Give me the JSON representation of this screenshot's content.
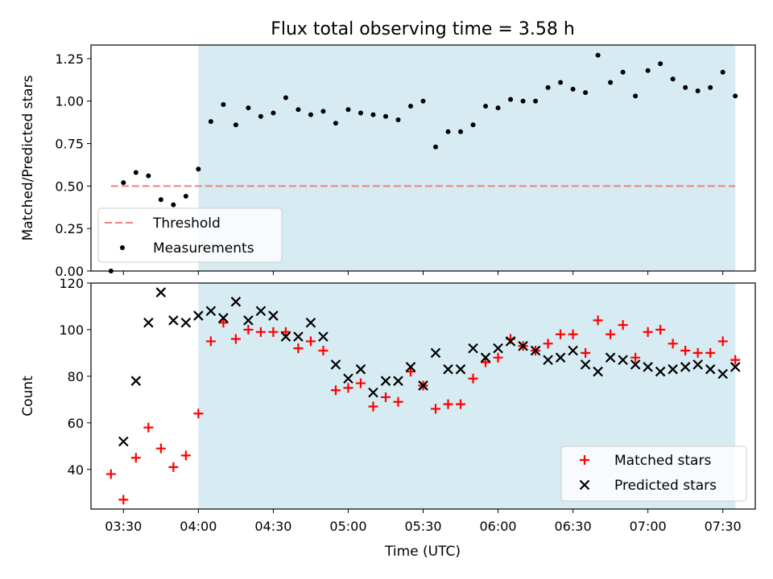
{
  "chart_data": [
    {
      "type": "scatter",
      "title": "Flux total observing time = 3.58 h",
      "xlabel": "",
      "ylabel": "Matched/Predicted stars",
      "xlim": [
        "03:17",
        "07:43"
      ],
      "ylim": [
        0,
        1.33
      ],
      "y_ticks": [
        "0.00",
        "0.25",
        "0.50",
        "0.75",
        "1.00",
        "1.25"
      ],
      "y_tick_values": [
        0,
        0.25,
        0.5,
        0.75,
        1.0,
        1.25
      ],
      "shaded_region": {
        "x_start": "04:00",
        "x_end": "07:35",
        "color": "#add8e6"
      },
      "threshold": {
        "name": "Threshold",
        "y": 0.5,
        "x_start": "03:25",
        "x_end": "07:35",
        "color": "#f08080"
      },
      "legend": {
        "position": "lower-left",
        "entries": [
          "Threshold",
          "Measurements"
        ]
      },
      "series": [
        {
          "name": "Measurements",
          "color": "#000000",
          "marker": "dot",
          "points": [
            [
              "03:25",
              0.0
            ],
            [
              "03:30",
              0.52
            ],
            [
              "03:35",
              0.58
            ],
            [
              "03:40",
              0.56
            ],
            [
              "03:45",
              0.42
            ],
            [
              "03:50",
              0.39
            ],
            [
              "03:55",
              0.44
            ],
            [
              "04:00",
              0.6
            ],
            [
              "04:05",
              0.88
            ],
            [
              "04:10",
              0.98
            ],
            [
              "04:15",
              0.86
            ],
            [
              "04:20",
              0.96
            ],
            [
              "04:25",
              0.91
            ],
            [
              "04:30",
              0.93
            ],
            [
              "04:35",
              1.02
            ],
            [
              "04:40",
              0.95
            ],
            [
              "04:45",
              0.92
            ],
            [
              "04:50",
              0.94
            ],
            [
              "04:55",
              0.87
            ],
            [
              "05:00",
              0.95
            ],
            [
              "05:05",
              0.93
            ],
            [
              "05:10",
              0.92
            ],
            [
              "05:15",
              0.91
            ],
            [
              "05:20",
              0.89
            ],
            [
              "05:25",
              0.97
            ],
            [
              "05:30",
              1.0
            ],
            [
              "05:35",
              0.73
            ],
            [
              "05:40",
              0.82
            ],
            [
              "05:45",
              0.82
            ],
            [
              "05:50",
              0.86
            ],
            [
              "05:55",
              0.97
            ],
            [
              "06:00",
              0.96
            ],
            [
              "06:05",
              1.01
            ],
            [
              "06:10",
              1.0
            ],
            [
              "06:15",
              1.0
            ],
            [
              "06:20",
              1.08
            ],
            [
              "06:25",
              1.11
            ],
            [
              "06:30",
              1.07
            ],
            [
              "06:35",
              1.05
            ],
            [
              "06:40",
              1.27
            ],
            [
              "06:45",
              1.11
            ],
            [
              "06:50",
              1.17
            ],
            [
              "06:55",
              1.03
            ],
            [
              "07:00",
              1.18
            ],
            [
              "07:05",
              1.22
            ],
            [
              "07:10",
              1.13
            ],
            [
              "07:15",
              1.08
            ],
            [
              "07:20",
              1.06
            ],
            [
              "07:25",
              1.08
            ],
            [
              "07:30",
              1.17
            ],
            [
              "07:35",
              1.03
            ]
          ]
        }
      ]
    },
    {
      "type": "scatter",
      "title": "",
      "xlabel": "Time (UTC)",
      "ylabel": "Count",
      "xlim": [
        "03:17",
        "07:43"
      ],
      "ylim": [
        23,
        120
      ],
      "x_ticks": [
        "03:30",
        "04:00",
        "04:30",
        "05:00",
        "05:30",
        "06:00",
        "06:30",
        "07:00",
        "07:30"
      ],
      "y_ticks": [
        "40",
        "60",
        "80",
        "100",
        "120"
      ],
      "y_tick_values": [
        40,
        60,
        80,
        100,
        120
      ],
      "shaded_region": {
        "x_start": "04:00",
        "x_end": "07:35",
        "color": "#add8e6"
      },
      "legend": {
        "position": "lower-right",
        "entries": [
          "Matched stars",
          "Predicted stars"
        ]
      },
      "series": [
        {
          "name": "Matched stars",
          "color": "#ff0000",
          "marker": "plus",
          "points": [
            [
              "03:25",
              38
            ],
            [
              "03:30",
              27
            ],
            [
              "03:35",
              45
            ],
            [
              "03:40",
              58
            ],
            [
              "03:45",
              49
            ],
            [
              "03:50",
              41
            ],
            [
              "03:55",
              46
            ],
            [
              "04:00",
              64
            ],
            [
              "04:05",
              95
            ],
            [
              "04:10",
              103
            ],
            [
              "04:15",
              96
            ],
            [
              "04:20",
              100
            ],
            [
              "04:25",
              99
            ],
            [
              "04:30",
              99
            ],
            [
              "04:35",
              99
            ],
            [
              "04:40",
              92
            ],
            [
              "04:45",
              95
            ],
            [
              "04:50",
              91
            ],
            [
              "04:55",
              74
            ],
            [
              "05:00",
              75
            ],
            [
              "05:05",
              77
            ],
            [
              "05:10",
              67
            ],
            [
              "05:15",
              71
            ],
            [
              "05:20",
              69
            ],
            [
              "05:25",
              82
            ],
            [
              "05:30",
              76
            ],
            [
              "05:35",
              66
            ],
            [
              "05:40",
              68
            ],
            [
              "05:45",
              68
            ],
            [
              "05:50",
              79
            ],
            [
              "05:55",
              86
            ],
            [
              "06:00",
              88
            ],
            [
              "06:05",
              96
            ],
            [
              "06:10",
              93
            ],
            [
              "06:15",
              91
            ],
            [
              "06:20",
              94
            ],
            [
              "06:25",
              98
            ],
            [
              "06:30",
              98
            ],
            [
              "06:35",
              90
            ],
            [
              "06:40",
              104
            ],
            [
              "06:45",
              98
            ],
            [
              "06:50",
              102
            ],
            [
              "06:55",
              88
            ],
            [
              "07:00",
              99
            ],
            [
              "07:05",
              100
            ],
            [
              "07:10",
              94
            ],
            [
              "07:15",
              91
            ],
            [
              "07:20",
              90
            ],
            [
              "07:25",
              90
            ],
            [
              "07:30",
              95
            ],
            [
              "07:35",
              87
            ]
          ]
        },
        {
          "name": "Predicted stars",
          "color": "#000000",
          "marker": "x",
          "points": [
            [
              "03:30",
              52
            ],
            [
              "03:35",
              78
            ],
            [
              "03:40",
              103
            ],
            [
              "03:45",
              116
            ],
            [
              "03:50",
              104
            ],
            [
              "03:55",
              103
            ],
            [
              "04:00",
              106
            ],
            [
              "04:05",
              108
            ],
            [
              "04:10",
              105
            ],
            [
              "04:15",
              112
            ],
            [
              "04:20",
              104
            ],
            [
              "04:25",
              108
            ],
            [
              "04:30",
              106
            ],
            [
              "04:35",
              97
            ],
            [
              "04:40",
              97
            ],
            [
              "04:45",
              103
            ],
            [
              "04:50",
              97
            ],
            [
              "04:55",
              85
            ],
            [
              "05:00",
              79
            ],
            [
              "05:05",
              83
            ],
            [
              "05:10",
              73
            ],
            [
              "05:15",
              78
            ],
            [
              "05:20",
              78
            ],
            [
              "05:25",
              84
            ],
            [
              "05:30",
              76
            ],
            [
              "05:35",
              90
            ],
            [
              "05:40",
              83
            ],
            [
              "05:45",
              83
            ],
            [
              "05:50",
              92
            ],
            [
              "05:55",
              88
            ],
            [
              "06:00",
              92
            ],
            [
              "06:05",
              95
            ],
            [
              "06:10",
              93
            ],
            [
              "06:15",
              91
            ],
            [
              "06:20",
              87
            ],
            [
              "06:25",
              88
            ],
            [
              "06:30",
              91
            ],
            [
              "06:35",
              85
            ],
            [
              "06:40",
              82
            ],
            [
              "06:45",
              88
            ],
            [
              "06:50",
              87
            ],
            [
              "06:55",
              85
            ],
            [
              "07:00",
              84
            ],
            [
              "07:05",
              82
            ],
            [
              "07:10",
              83
            ],
            [
              "07:15",
              84
            ],
            [
              "07:20",
              85
            ],
            [
              "07:25",
              83
            ],
            [
              "07:30",
              81
            ],
            [
              "07:35",
              84
            ]
          ]
        }
      ]
    }
  ]
}
